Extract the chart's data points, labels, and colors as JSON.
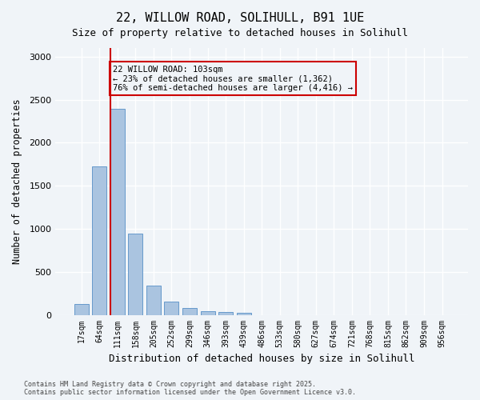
{
  "title_line1": "22, WILLOW ROAD, SOLIHULL, B91 1UE",
  "title_line2": "Size of property relative to detached houses in Solihull",
  "xlabel": "Distribution of detached houses by size in Solihull",
  "ylabel": "Number of detached properties",
  "categories": [
    "17sqm",
    "64sqm",
    "111sqm",
    "158sqm",
    "205sqm",
    "252sqm",
    "299sqm",
    "346sqm",
    "393sqm",
    "439sqm",
    "486sqm",
    "533sqm",
    "580sqm",
    "627sqm",
    "674sqm",
    "721sqm",
    "768sqm",
    "815sqm",
    "862sqm",
    "909sqm",
    "956sqm"
  ],
  "values": [
    130,
    1720,
    2390,
    940,
    340,
    155,
    80,
    45,
    35,
    25,
    0,
    0,
    0,
    0,
    0,
    0,
    0,
    0,
    0,
    0,
    0
  ],
  "bar_color": "#aac4e0",
  "bar_edge_color": "#6699cc",
  "vline_x": 2,
  "vline_color": "#cc0000",
  "annotation_text": "22 WILLOW ROAD: 103sqm\n← 23% of detached houses are smaller (1,362)\n76% of semi-detached houses are larger (4,416) →",
  "annotation_box_edge_color": "#cc0000",
  "ylim": [
    0,
    3100
  ],
  "yticks": [
    0,
    500,
    1000,
    1500,
    2000,
    2500,
    3000
  ],
  "background_color": "#f0f4f8",
  "grid_color": "#ffffff",
  "footer_line1": "Contains HM Land Registry data © Crown copyright and database right 2025.",
  "footer_line2": "Contains public sector information licensed under the Open Government Licence v3.0.",
  "font_family": "monospace"
}
